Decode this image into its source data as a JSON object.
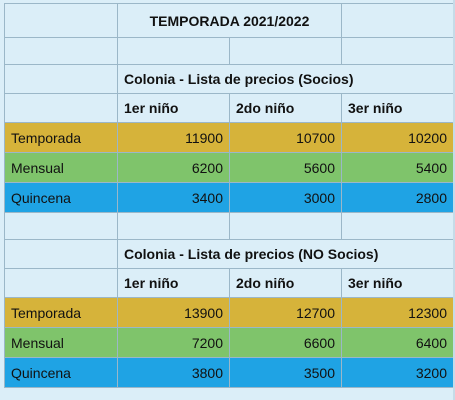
{
  "colors": {
    "temporada": "#d6b33a",
    "mensual": "#7fc46b",
    "quincena": "#1fa3e4",
    "grid_background": "#dbeef8"
  },
  "title": "TEMPORADA 2021/2022",
  "tables": [
    {
      "heading": "Colonia - Lista de precios (Socios)",
      "columns": [
        "1er niño",
        "2do niño",
        "3er niño"
      ],
      "rows": [
        {
          "label": "Temporada",
          "values": [
            "11900",
            "10700",
            "10200"
          ]
        },
        {
          "label": "Mensual",
          "values": [
            "6200",
            "5600",
            "5400"
          ]
        },
        {
          "label": "Quincena",
          "values": [
            "3400",
            "3000",
            "2800"
          ]
        }
      ]
    },
    {
      "heading": "Colonia - Lista de precios (NO Socios)",
      "columns": [
        "1er niño",
        "2do niño",
        "3er niño"
      ],
      "rows": [
        {
          "label": "Temporada",
          "values": [
            "13900",
            "12700",
            "12300"
          ]
        },
        {
          "label": "Mensual",
          "values": [
            "7200",
            "6600",
            "6400"
          ]
        },
        {
          "label": "Quincena",
          "values": [
            "3800",
            "3500",
            "3200"
          ]
        }
      ]
    }
  ]
}
